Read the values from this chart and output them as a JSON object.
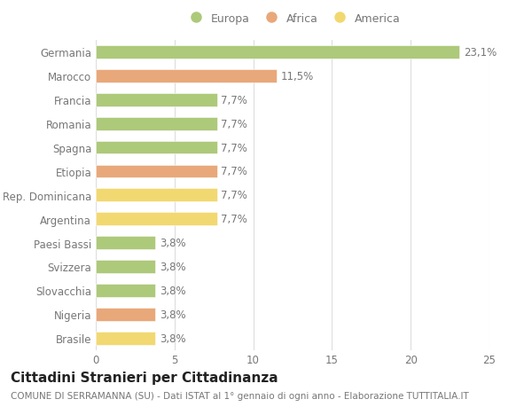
{
  "categories": [
    "Brasile",
    "Nigeria",
    "Slovacchia",
    "Svizzera",
    "Paesi Bassi",
    "Argentina",
    "Rep. Dominicana",
    "Etiopia",
    "Spagna",
    "Romania",
    "Francia",
    "Marocco",
    "Germania"
  ],
  "values": [
    3.8,
    3.8,
    3.8,
    3.8,
    3.8,
    7.7,
    7.7,
    7.7,
    7.7,
    7.7,
    7.7,
    11.5,
    23.1
  ],
  "labels": [
    "3,8%",
    "3,8%",
    "3,8%",
    "3,8%",
    "3,8%",
    "7,7%",
    "7,7%",
    "7,7%",
    "7,7%",
    "7,7%",
    "7,7%",
    "11,5%",
    "23,1%"
  ],
  "colors": [
    "#f2d870",
    "#e8a87a",
    "#adc97a",
    "#adc97a",
    "#adc97a",
    "#f2d870",
    "#f2d870",
    "#e8a87a",
    "#adc97a",
    "#adc97a",
    "#adc97a",
    "#e8a87a",
    "#adc97a"
  ],
  "legend_labels": [
    "Europa",
    "Africa",
    "America"
  ],
  "legend_colors": [
    "#adc97a",
    "#e8a87a",
    "#f2d870"
  ],
  "title": "Cittadini Stranieri per Cittadinanza",
  "subtitle": "COMUNE DI SERRAMANNA (SU) - Dati ISTAT al 1° gennaio di ogni anno - Elaborazione TUTTITALIA.IT",
  "xlim": [
    0,
    25
  ],
  "xticks": [
    0,
    5,
    10,
    15,
    20,
    25
  ],
  "background_color": "#ffffff",
  "grid_color": "#dddddd",
  "text_color": "#777777",
  "title_color": "#222222",
  "subtitle_color": "#777777",
  "title_fontsize": 11,
  "subtitle_fontsize": 7.5,
  "label_fontsize": 8.5,
  "tick_fontsize": 8.5,
  "legend_fontsize": 9
}
